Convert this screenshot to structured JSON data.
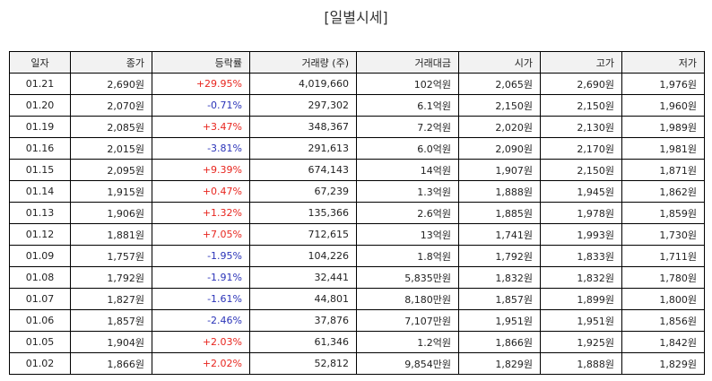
{
  "title": "[일별시세]",
  "columns": [
    "일자",
    "종가",
    "등락률",
    "거래량 (주)",
    "거래대금",
    "시가",
    "고가",
    "저가"
  ],
  "rows": [
    {
      "date": "01.21",
      "close": "2,690원",
      "change": "+29.95%",
      "dir": "up",
      "volume": "4,019,660",
      "amount": "102억원",
      "open": "2,065원",
      "high": "2,690원",
      "low": "1,976원"
    },
    {
      "date": "01.20",
      "close": "2,070원",
      "change": "-0.71%",
      "dir": "down",
      "volume": "297,302",
      "amount": "6.1억원",
      "open": "2,150원",
      "high": "2,150원",
      "low": "1,960원"
    },
    {
      "date": "01.19",
      "close": "2,085원",
      "change": "+3.47%",
      "dir": "up",
      "volume": "348,367",
      "amount": "7.2억원",
      "open": "2,020원",
      "high": "2,130원",
      "low": "1,989원"
    },
    {
      "date": "01.16",
      "close": "2,015원",
      "change": "-3.81%",
      "dir": "down",
      "volume": "291,613",
      "amount": "6.0억원",
      "open": "2,090원",
      "high": "2,170원",
      "low": "1,981원"
    },
    {
      "date": "01.15",
      "close": "2,095원",
      "change": "+9.39%",
      "dir": "up",
      "volume": "674,143",
      "amount": "14억원",
      "open": "1,907원",
      "high": "2,150원",
      "low": "1,871원"
    },
    {
      "date": "01.14",
      "close": "1,915원",
      "change": "+0.47%",
      "dir": "up",
      "volume": "67,239",
      "amount": "1.3억원",
      "open": "1,888원",
      "high": "1,945원",
      "low": "1,862원"
    },
    {
      "date": "01.13",
      "close": "1,906원",
      "change": "+1.32%",
      "dir": "up",
      "volume": "135,366",
      "amount": "2.6억원",
      "open": "1,885원",
      "high": "1,978원",
      "low": "1,859원"
    },
    {
      "date": "01.12",
      "close": "1,881원",
      "change": "+7.05%",
      "dir": "up",
      "volume": "712,615",
      "amount": "13억원",
      "open": "1,741원",
      "high": "1,993원",
      "low": "1,730원"
    },
    {
      "date": "01.09",
      "close": "1,757원",
      "change": "-1.95%",
      "dir": "down",
      "volume": "104,226",
      "amount": "1.8억원",
      "open": "1,792원",
      "high": "1,833원",
      "low": "1,711원"
    },
    {
      "date": "01.08",
      "close": "1,792원",
      "change": "-1.91%",
      "dir": "down",
      "volume": "32,441",
      "amount": "5,835만원",
      "open": "1,832원",
      "high": "1,832원",
      "low": "1,780원"
    },
    {
      "date": "01.07",
      "close": "1,827원",
      "change": "-1.61%",
      "dir": "down",
      "volume": "44,801",
      "amount": "8,180만원",
      "open": "1,857원",
      "high": "1,899원",
      "low": "1,800원"
    },
    {
      "date": "01.06",
      "close": "1,857원",
      "change": "-2.46%",
      "dir": "down",
      "volume": "37,876",
      "amount": "7,107만원",
      "open": "1,951원",
      "high": "1,951원",
      "low": "1,856원"
    },
    {
      "date": "01.05",
      "close": "1,904원",
      "change": "+2.03%",
      "dir": "up",
      "volume": "61,346",
      "amount": "1.2억원",
      "open": "1,866원",
      "high": "1,925원",
      "low": "1,842원"
    },
    {
      "date": "01.02",
      "close": "1,866원",
      "change": "+2.02%",
      "dir": "up",
      "volume": "52,812",
      "amount": "9,854만원",
      "open": "1,829원",
      "high": "1,888원",
      "low": "1,829원"
    }
  ],
  "colors": {
    "up": "#e8261f",
    "down": "#2a33b8"
  }
}
